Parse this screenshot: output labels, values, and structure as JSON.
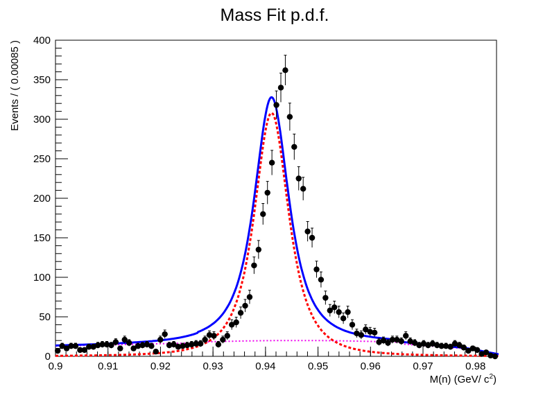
{
  "chart_data": {
    "type": "scatter",
    "title": "Mass Fit p.d.f.",
    "xlabel": "M(n) (GeV/ c",
    "xlabel_sup": "2",
    "xlabel_close": ")",
    "ylabel": "Events / ( 0.00085 )",
    "xlim": [
      0.9,
      0.984
    ],
    "ylim": [
      0,
      400
    ],
    "x_ticks": [
      "0.9",
      "0.91",
      "0.92",
      "0.93",
      "0.94",
      "0.95",
      "0.96",
      "0.97",
      "0.98"
    ],
    "y_ticks": [
      "0",
      "50",
      "100",
      "150",
      "200",
      "250",
      "300",
      "350",
      "400"
    ],
    "bin_width": 0.00085,
    "data_points": [
      7,
      13,
      10,
      13,
      13,
      8,
      8,
      12,
      12,
      14,
      15,
      15,
      14,
      18,
      10,
      21,
      17,
      10,
      13,
      14,
      15,
      13,
      6,
      21,
      28,
      14,
      15,
      12,
      13,
      14,
      15,
      16,
      16,
      21,
      27,
      26,
      15,
      21,
      26,
      40,
      43,
      55,
      64,
      75,
      115,
      135,
      180,
      207,
      245,
      318,
      340,
      362,
      303,
      265,
      225,
      212,
      158,
      150,
      110,
      97,
      74,
      58,
      62,
      56,
      48,
      56,
      40,
      29,
      27,
      34,
      31,
      30,
      18,
      20,
      17,
      21,
      21,
      19,
      26,
      19,
      17,
      14,
      16,
      14,
      16,
      14,
      13,
      13,
      12,
      16,
      14,
      11,
      7,
      10,
      8,
      3,
      5,
      1,
      0,
      0,
      0
    ],
    "curve_colors": {
      "total": "#0000ff",
      "signal": "#ff0000",
      "background": "#ee00ee",
      "points": "#000000"
    },
    "legend": "none",
    "grid": false
  }
}
